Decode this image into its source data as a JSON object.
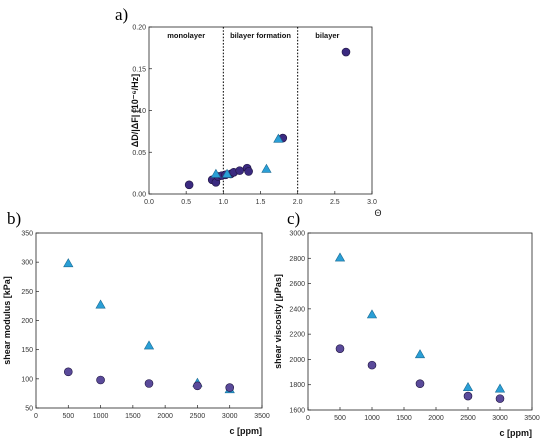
{
  "chart_data": [
    {
      "id": "a",
      "type": "scatter",
      "panel_label": "a)",
      "ylabel": "ΔD/|ΔF| [10⁻⁶/Hz]",
      "xlabel": "Θ",
      "xlim": [
        0.0,
        3.0
      ],
      "ylim": [
        0.0,
        0.2
      ],
      "xticks": [
        "0.0",
        "0.5",
        "1.0",
        "1.5",
        "2.0",
        "2.5",
        "3.0"
      ],
      "yticks": [
        "0.00",
        "0.05",
        "0.10",
        "0.15",
        "0.20"
      ],
      "region_lines": [
        1.0,
        2.0
      ],
      "regions": [
        {
          "label": "monolayer",
          "x": 0.5
        },
        {
          "label": "bilayer formation",
          "x": 1.5
        },
        {
          "label": "bilayer",
          "x": 2.4
        }
      ],
      "series": [
        {
          "marker": "circle",
          "color": "#3b2a80",
          "points": [
            [
              0.54,
              0.011
            ],
            [
              0.85,
              0.017
            ],
            [
              0.9,
              0.014
            ],
            [
              0.93,
              0.021
            ],
            [
              0.98,
              0.022
            ],
            [
              1.03,
              0.023
            ],
            [
              1.1,
              0.024
            ],
            [
              1.14,
              0.026
            ],
            [
              1.22,
              0.028
            ],
            [
              1.32,
              0.031
            ],
            [
              1.34,
              0.027
            ],
            [
              1.8,
              0.067
            ],
            [
              2.65,
              0.17
            ]
          ]
        },
        {
          "marker": "triangle",
          "color": "#2a9fd6",
          "points": [
            [
              0.9,
              0.024
            ],
            [
              1.05,
              0.024
            ],
            [
              1.58,
              0.03
            ],
            [
              1.74,
              0.066
            ]
          ]
        }
      ]
    },
    {
      "id": "b",
      "type": "scatter",
      "panel_label": "b)",
      "ylabel": "shear modulus [kPa]",
      "xlabel": "c [ppm]",
      "xlim": [
        0,
        3500
      ],
      "ylim": [
        50,
        350
      ],
      "xticks": [
        "0",
        "500",
        "1000",
        "1500",
        "2000",
        "2500",
        "3000",
        "3500"
      ],
      "yticks": [
        "50",
        "100",
        "150",
        "200",
        "250",
        "300",
        "350"
      ],
      "series": [
        {
          "marker": "triangle",
          "color": "#2a9fd6",
          "points": [
            [
              500,
              298
            ],
            [
              1000,
              227
            ],
            [
              1750,
              157
            ],
            [
              2500,
              93
            ],
            [
              3000,
              82
            ]
          ]
        },
        {
          "marker": "circle",
          "color": "#5a4a9a",
          "points": [
            [
              500,
              112
            ],
            [
              1000,
              98
            ],
            [
              1750,
              92
            ],
            [
              2500,
              88
            ],
            [
              3000,
              85
            ]
          ]
        }
      ]
    },
    {
      "id": "c",
      "type": "scatter",
      "panel_label": "c)",
      "ylabel": "shear viscosity [µPas]",
      "xlabel": "c [ppm]",
      "xlim": [
        0,
        3500
      ],
      "ylim": [
        1600,
        3000
      ],
      "xticks": [
        "0",
        "500",
        "1000",
        "1500",
        "2000",
        "2500",
        "3000",
        "3500"
      ],
      "yticks": [
        "1600",
        "1800",
        "2000",
        "2200",
        "2400",
        "2600",
        "2800",
        "3000"
      ],
      "series": [
        {
          "marker": "triangle",
          "color": "#2a9fd6",
          "points": [
            [
              500,
              2805
            ],
            [
              1000,
              2355
            ],
            [
              1750,
              2040
            ],
            [
              2500,
              1780
            ],
            [
              3000,
              1768
            ]
          ]
        },
        {
          "marker": "circle",
          "color": "#5a4a9a",
          "points": [
            [
              500,
              2085
            ],
            [
              1000,
              1955
            ],
            [
              1750,
              1808
            ],
            [
              2500,
              1710
            ],
            [
              3000,
              1690
            ]
          ]
        }
      ]
    }
  ]
}
